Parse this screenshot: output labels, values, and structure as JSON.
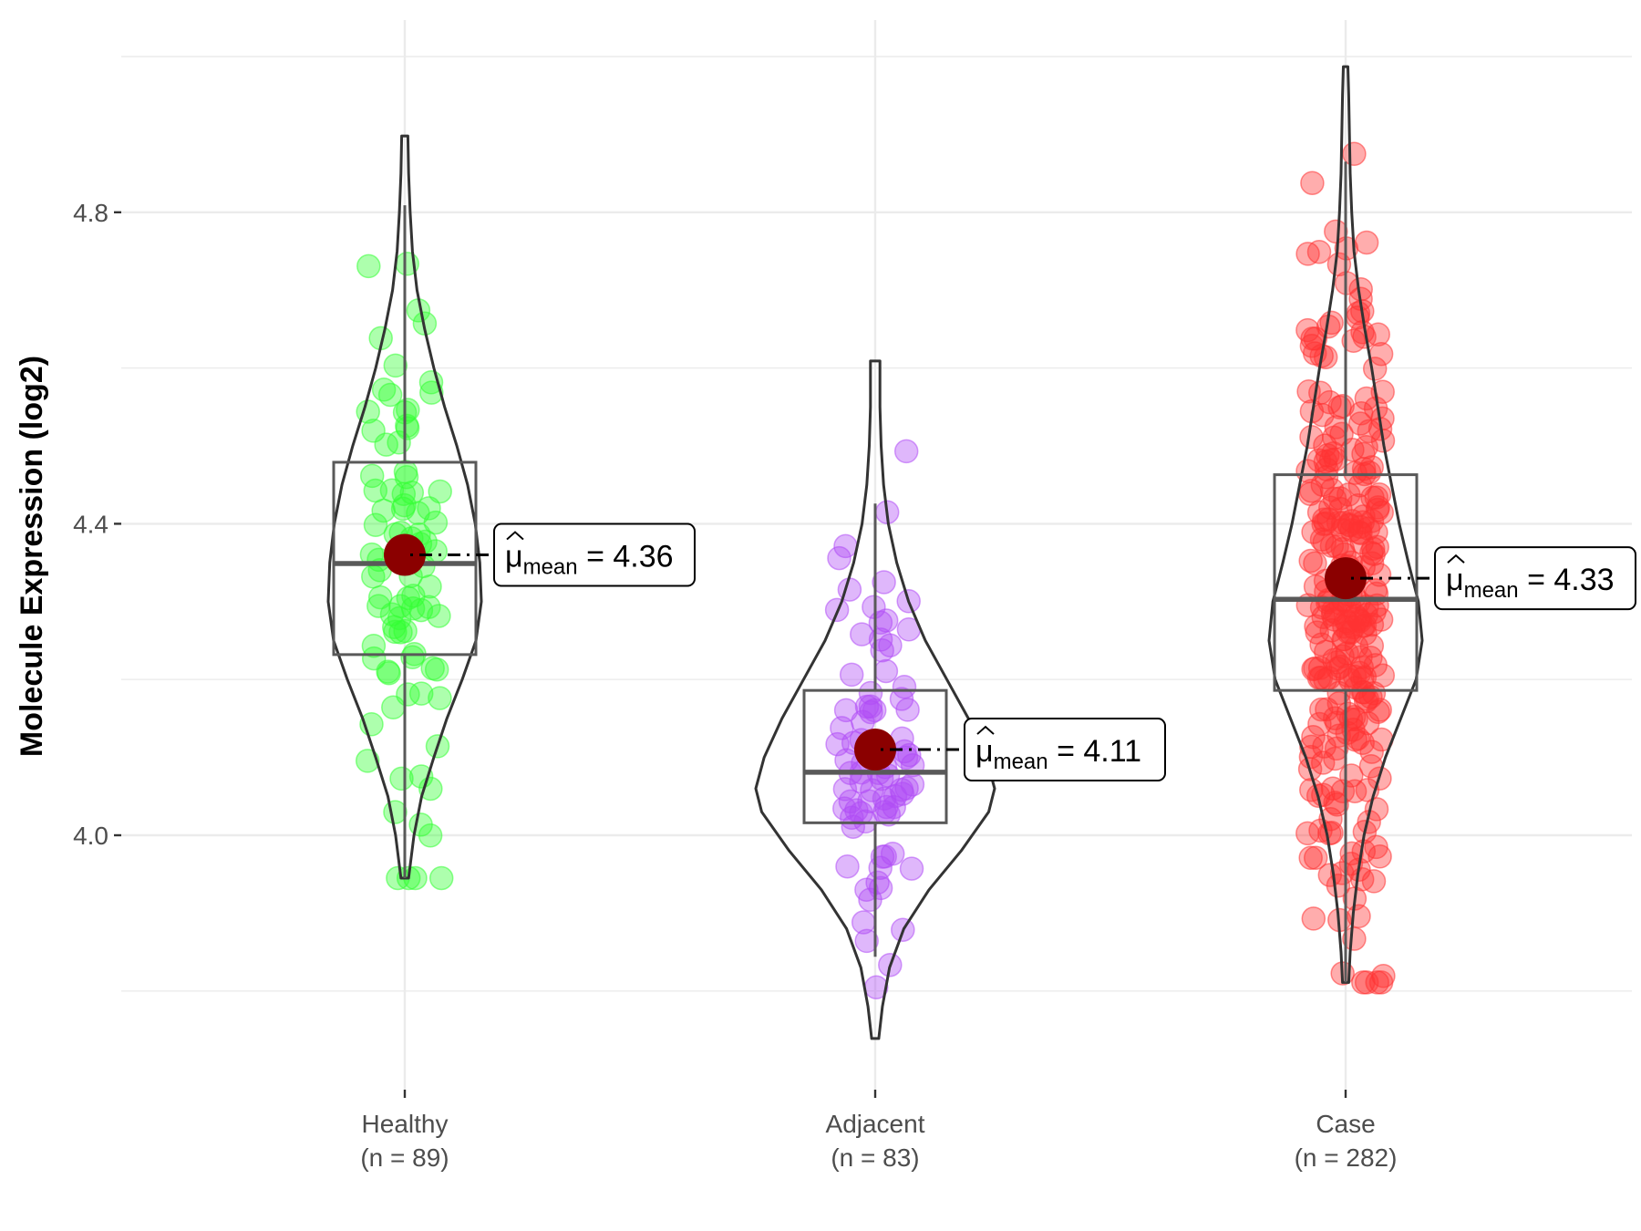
{
  "chart_data": {
    "type": "violin",
    "title": "",
    "xlabel": "",
    "ylabel": "Molecule Expression (log2)",
    "ylim": [
      3.73,
      5.03
    ],
    "y_major_ticks": [
      4.0,
      4.4,
      4.8
    ],
    "y_tick_labels": [
      "4.0",
      "4.4",
      "4.8"
    ],
    "y_minor_grid": [
      3.8,
      4.2,
      4.6,
      5.0
    ],
    "grid": true,
    "legend": "none",
    "mean_label_prefix": "μ",
    "mean_label_sub": "mean",
    "mean_label_eq": "=",
    "groups": [
      {
        "name": "Healthy",
        "n_label": "(n = 89)",
        "n": 89,
        "color": "#33ff33",
        "mean": 4.36,
        "mean_label": "4.36",
        "box": {
          "q1": 4.232,
          "median": 4.349,
          "q3": 4.479,
          "whisker_low": 3.945,
          "whisker_high": 4.809
        },
        "violin": {
          "min": 3.945,
          "max": 4.898,
          "profile": [
            [
              3.945,
              0.05
            ],
            [
              4.0,
              0.12
            ],
            [
              4.05,
              0.22
            ],
            [
              4.1,
              0.38
            ],
            [
              4.15,
              0.55
            ],
            [
              4.2,
              0.75
            ],
            [
              4.25,
              0.93
            ],
            [
              4.3,
              1.0
            ],
            [
              4.35,
              0.98
            ],
            [
              4.4,
              0.92
            ],
            [
              4.45,
              0.82
            ],
            [
              4.5,
              0.68
            ],
            [
              4.55,
              0.52
            ],
            [
              4.6,
              0.38
            ],
            [
              4.65,
              0.26
            ],
            [
              4.7,
              0.16
            ],
            [
              4.75,
              0.1
            ],
            [
              4.8,
              0.07
            ],
            [
              4.85,
              0.05
            ],
            [
              4.898,
              0.04
            ]
          ]
        }
      },
      {
        "name": "Adjacent",
        "n_label": "(n = 83)",
        "n": 83,
        "color": "#b04cf5",
        "mean": 4.11,
        "mean_label": "4.11",
        "box": {
          "q1": 4.016,
          "median": 4.081,
          "q3": 4.186,
          "whisker_low": 3.844,
          "whisker_high": 4.426
        },
        "violin": {
          "min": 3.739,
          "max": 4.609,
          "profile": [
            [
              3.739,
              0.03
            ],
            [
              3.78,
              0.06
            ],
            [
              3.83,
              0.12
            ],
            [
              3.88,
              0.24
            ],
            [
              3.93,
              0.45
            ],
            [
              3.98,
              0.72
            ],
            [
              4.03,
              0.95
            ],
            [
              4.06,
              1.0
            ],
            [
              4.1,
              0.93
            ],
            [
              4.15,
              0.78
            ],
            [
              4.2,
              0.6
            ],
            [
              4.25,
              0.42
            ],
            [
              4.3,
              0.28
            ],
            [
              4.35,
              0.18
            ],
            [
              4.4,
              0.11
            ],
            [
              4.45,
              0.07
            ],
            [
              4.5,
              0.05
            ],
            [
              4.55,
              0.04
            ],
            [
              4.609,
              0.04
            ]
          ]
        }
      },
      {
        "name": "Case",
        "n_label": "(n = 282)",
        "n": 282,
        "color": "#ff3333",
        "mean": 4.33,
        "mean_label": "4.33",
        "box": {
          "q1": 4.186,
          "median": 4.303,
          "q3": 4.463,
          "whisker_low": 3.811,
          "whisker_high": 4.865
        },
        "violin": {
          "min": 3.811,
          "max": 4.987,
          "profile": [
            [
              3.811,
              0.04
            ],
            [
              3.85,
              0.06
            ],
            [
              3.9,
              0.1
            ],
            [
              3.95,
              0.16
            ],
            [
              4.0,
              0.24
            ],
            [
              4.05,
              0.36
            ],
            [
              4.1,
              0.52
            ],
            [
              4.15,
              0.72
            ],
            [
              4.2,
              0.92
            ],
            [
              4.25,
              1.0
            ],
            [
              4.3,
              0.95
            ],
            [
              4.35,
              0.82
            ],
            [
              4.4,
              0.7
            ],
            [
              4.45,
              0.6
            ],
            [
              4.5,
              0.5
            ],
            [
              4.55,
              0.42
            ],
            [
              4.6,
              0.34
            ],
            [
              4.65,
              0.25
            ],
            [
              4.7,
              0.17
            ],
            [
              4.75,
              0.11
            ],
            [
              4.8,
              0.08
            ],
            [
              4.85,
              0.06
            ],
            [
              4.9,
              0.05
            ],
            [
              4.95,
              0.04
            ],
            [
              4.987,
              0.03
            ]
          ]
        }
      }
    ]
  }
}
